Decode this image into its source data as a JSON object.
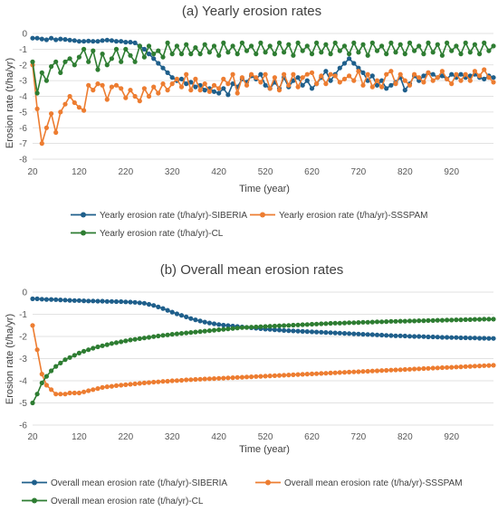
{
  "chart_data": [
    {
      "type": "line",
      "title": "(a) Yearly erosion rates",
      "xlabel": "Time (year)",
      "ylabel": "Erosion rate (t/ha/yr)",
      "xlim": [
        20,
        1010
      ],
      "ylim": [
        -8,
        0
      ],
      "xticks": [
        20,
        120,
        220,
        320,
        420,
        520,
        620,
        720,
        820,
        920
      ],
      "yticks": [
        0,
        -1,
        -2,
        -3,
        -4,
        -5,
        -6,
        -7,
        -8
      ],
      "grid": "horizontal",
      "legend": "bottom",
      "x_step": 10,
      "series": [
        {
          "name": "Yearly erosion rate (t/ha/yr)-SIBERIA",
          "color": "#1f5f8b",
          "values": [
            -0.3,
            -0.3,
            -0.35,
            -0.4,
            -0.3,
            -0.4,
            -0.35,
            -0.38,
            -0.42,
            -0.45,
            -0.5,
            -0.5,
            -0.48,
            -0.5,
            -0.5,
            -0.45,
            -0.42,
            -0.45,
            -0.5,
            -0.5,
            -0.55,
            -0.55,
            -0.6,
            -0.8,
            -1.0,
            -1.3,
            -1.6,
            -1.9,
            -2.2,
            -2.5,
            -2.8,
            -3.0,
            -2.9,
            -3.2,
            -3.1,
            -3.4,
            -3.3,
            -3.6,
            -3.5,
            -3.7,
            -3.8,
            -3.5,
            -3.9,
            -3.2,
            -3.4,
            -2.9,
            -3.1,
            -2.7,
            -2.9,
            -2.6,
            -3.3,
            -3.5,
            -3.1,
            -3.5,
            -2.8,
            -3.4,
            -3.0,
            -2.8,
            -3.3,
            -3.0,
            -3.5,
            -3.2,
            -2.8,
            -2.4,
            -3.0,
            -2.6,
            -2.2,
            -1.9,
            -1.6,
            -1.9,
            -2.2,
            -2.5,
            -3.0,
            -2.7,
            -3.3,
            -3.0,
            -3.5,
            -3.3,
            -3.1,
            -2.8,
            -3.6,
            -3.2,
            -2.7,
            -3.0,
            -2.7,
            -2.5,
            -2.6,
            -2.8,
            -2.7,
            -2.9,
            -2.6,
            -2.8,
            -2.6,
            -2.8,
            -2.7,
            -2.6,
            -2.8,
            -2.9,
            -2.7,
            -2.8
          ]
        },
        {
          "name": "Yearly erosion rate (t/ha/yr)-SSSPAM",
          "color": "#ed7d31",
          "values": [
            -2.0,
            -4.8,
            -7.0,
            -6.0,
            -5.1,
            -6.3,
            -5.0,
            -4.5,
            -4.0,
            -4.4,
            -4.7,
            -4.9,
            -3.3,
            -3.6,
            -3.2,
            -3.3,
            -4.2,
            -3.4,
            -3.3,
            -3.5,
            -4.1,
            -3.6,
            -4.0,
            -4.3,
            -3.5,
            -4.0,
            -3.4,
            -3.8,
            -3.2,
            -3.6,
            -3.2,
            -2.9,
            -3.4,
            -2.6,
            -3.6,
            -2.9,
            -3.6,
            -3.2,
            -3.7,
            -3.3,
            -3.5,
            -2.9,
            -3.2,
            -2.6,
            -3.8,
            -2.8,
            -3.3,
            -2.6,
            -2.8,
            -3.1,
            -2.6,
            -3.5,
            -2.8,
            -3.6,
            -2.6,
            -3.3,
            -2.6,
            -3.4,
            -2.8,
            -2.6,
            -2.5,
            -3.2,
            -2.7,
            -3.2,
            -2.6,
            -2.7,
            -3.1,
            -2.9,
            -2.7,
            -3.0,
            -2.4,
            -3.3,
            -2.6,
            -3.4,
            -3.0,
            -3.4,
            -2.6,
            -2.4,
            -3.2,
            -2.6,
            -3.0,
            -3.3,
            -2.6,
            -2.8,
            -3.1,
            -2.5,
            -3.0,
            -2.8,
            -2.4,
            -2.9,
            -3.2,
            -2.6,
            -3.0,
            -2.6,
            -3.0,
            -2.4,
            -2.7,
            -2.3,
            -2.8,
            -3.1
          ]
        },
        {
          "name": "Yearly erosion rate (t/ha/yr)-CL",
          "color": "#2e7d32",
          "values": [
            -1.8,
            -3.8,
            -2.5,
            -3.0,
            -2.1,
            -1.8,
            -2.5,
            -1.8,
            -1.6,
            -2.0,
            -1.5,
            -1.0,
            -1.8,
            -1.1,
            -2.3,
            -1.3,
            -2.0,
            -1.6,
            -1.0,
            -1.8,
            -1.0,
            -1.4,
            -1.8,
            -0.8,
            -1.5,
            -0.8,
            -1.3,
            -1.1,
            -1.5,
            -0.6,
            -1.3,
            -0.8,
            -1.3,
            -0.7,
            -1.3,
            -0.9,
            -1.3,
            -0.7,
            -1.2,
            -0.8,
            -1.4,
            -0.6,
            -1.2,
            -0.8,
            -1.3,
            -0.6,
            -1.1,
            -0.8,
            -1.3,
            -0.6,
            -1.2,
            -0.8,
            -1.3,
            -0.6,
            -1.2,
            -0.7,
            -1.4,
            -0.6,
            -1.1,
            -0.8,
            -1.3,
            -0.6,
            -1.2,
            -0.7,
            -1.3,
            -0.6,
            -1.1,
            -0.8,
            -1.3,
            -0.6,
            -1.2,
            -0.7,
            -1.4,
            -0.6,
            -1.1,
            -0.8,
            -1.3,
            -0.6,
            -1.2,
            -0.7,
            -1.3,
            -0.6,
            -1.1,
            -0.8,
            -1.3,
            -0.6,
            -1.2,
            -0.7,
            -1.4,
            -0.6,
            -1.1,
            -0.8,
            -1.3,
            -0.6,
            -1.2,
            -0.7,
            -1.3,
            -0.6,
            -1.1,
            -0.8
          ]
        }
      ]
    },
    {
      "type": "line",
      "title": "(b) Overall mean erosion rates",
      "xlabel": "Time (year)",
      "ylabel": "Erosion rate (t/ha/yr)",
      "xlim": [
        20,
        1010
      ],
      "ylim": [
        -6,
        0
      ],
      "xticks": [
        20,
        120,
        220,
        320,
        420,
        520,
        620,
        720,
        820,
        920
      ],
      "yticks": [
        0,
        -1,
        -2,
        -3,
        -4,
        -5,
        -6
      ],
      "grid": "horizontal",
      "legend": "bottom",
      "x_step": 10,
      "series": [
        {
          "name": "Overall mean erosion rate (t/ha/yr)-SIBERIA",
          "color": "#1f5f8b",
          "values": [
            -0.3,
            -0.3,
            -0.32,
            -0.33,
            -0.33,
            -0.34,
            -0.35,
            -0.36,
            -0.37,
            -0.38,
            -0.38,
            -0.39,
            -0.4,
            -0.4,
            -0.41,
            -0.41,
            -0.42,
            -0.42,
            -0.43,
            -0.43,
            -0.44,
            -0.45,
            -0.46,
            -0.48,
            -0.5,
            -0.55,
            -0.6,
            -0.67,
            -0.74,
            -0.82,
            -0.9,
            -0.98,
            -1.05,
            -1.12,
            -1.19,
            -1.25,
            -1.3,
            -1.35,
            -1.39,
            -1.43,
            -1.46,
            -1.49,
            -1.51,
            -1.53,
            -1.55,
            -1.57,
            -1.59,
            -1.61,
            -1.63,
            -1.65,
            -1.67,
            -1.68,
            -1.7,
            -1.71,
            -1.73,
            -1.74,
            -1.75,
            -1.76,
            -1.77,
            -1.78,
            -1.79,
            -1.8,
            -1.81,
            -1.82,
            -1.83,
            -1.84,
            -1.85,
            -1.86,
            -1.87,
            -1.88,
            -1.89,
            -1.9,
            -1.91,
            -1.92,
            -1.93,
            -1.94,
            -1.95,
            -1.96,
            -1.97,
            -1.97,
            -1.98,
            -1.99,
            -2.0,
            -2.0,
            -2.01,
            -2.02,
            -2.02,
            -2.03,
            -2.04,
            -2.04,
            -2.05,
            -2.05,
            -2.06,
            -2.06,
            -2.07,
            -2.07,
            -2.08,
            -2.08,
            -2.09,
            -2.09
          ]
        },
        {
          "name": "Overall mean erosion rate (t/ha/yr)-SSSPAM",
          "color": "#ed7d31",
          "values": [
            -1.5,
            -2.6,
            -3.7,
            -4.2,
            -4.4,
            -4.6,
            -4.6,
            -4.6,
            -4.55,
            -4.55,
            -4.55,
            -4.5,
            -4.45,
            -4.4,
            -4.35,
            -4.3,
            -4.27,
            -4.25,
            -4.22,
            -4.2,
            -4.18,
            -4.16,
            -4.14,
            -4.12,
            -4.1,
            -4.08,
            -4.06,
            -4.05,
            -4.03,
            -4.02,
            -4.0,
            -3.99,
            -3.98,
            -3.96,
            -3.95,
            -3.94,
            -3.93,
            -3.92,
            -3.91,
            -3.9,
            -3.89,
            -3.88,
            -3.87,
            -3.86,
            -3.85,
            -3.84,
            -3.83,
            -3.82,
            -3.81,
            -3.8,
            -3.79,
            -3.78,
            -3.77,
            -3.76,
            -3.75,
            -3.74,
            -3.73,
            -3.72,
            -3.71,
            -3.7,
            -3.69,
            -3.68,
            -3.67,
            -3.66,
            -3.65,
            -3.64,
            -3.63,
            -3.62,
            -3.61,
            -3.6,
            -3.59,
            -3.58,
            -3.57,
            -3.56,
            -3.55,
            -3.54,
            -3.53,
            -3.52,
            -3.51,
            -3.5,
            -3.49,
            -3.48,
            -3.47,
            -3.46,
            -3.45,
            -3.44,
            -3.43,
            -3.42,
            -3.41,
            -3.4,
            -3.39,
            -3.38,
            -3.37,
            -3.36,
            -3.35,
            -3.34,
            -3.33,
            -3.32,
            -3.31,
            -3.3
          ]
        },
        {
          "name": "Overall mean erosion rate (t/ha/yr)-CL",
          "color": "#2e7d32",
          "values": [
            -5.0,
            -4.6,
            -4.1,
            -3.8,
            -3.55,
            -3.35,
            -3.2,
            -3.05,
            -2.95,
            -2.85,
            -2.75,
            -2.67,
            -2.6,
            -2.53,
            -2.47,
            -2.42,
            -2.37,
            -2.32,
            -2.28,
            -2.24,
            -2.2,
            -2.16,
            -2.13,
            -2.1,
            -2.07,
            -2.04,
            -2.01,
            -1.98,
            -1.95,
            -1.93,
            -1.9,
            -1.88,
            -1.86,
            -1.84,
            -1.82,
            -1.8,
            -1.78,
            -1.76,
            -1.74,
            -1.72,
            -1.7,
            -1.68,
            -1.66,
            -1.64,
            -1.62,
            -1.6,
            -1.59,
            -1.58,
            -1.57,
            -1.56,
            -1.55,
            -1.54,
            -1.53,
            -1.52,
            -1.51,
            -1.5,
            -1.49,
            -1.48,
            -1.47,
            -1.46,
            -1.45,
            -1.44,
            -1.43,
            -1.42,
            -1.41,
            -1.4,
            -1.4,
            -1.39,
            -1.38,
            -1.38,
            -1.37,
            -1.36,
            -1.36,
            -1.35,
            -1.34,
            -1.34,
            -1.33,
            -1.32,
            -1.32,
            -1.31,
            -1.31,
            -1.3,
            -1.3,
            -1.29,
            -1.29,
            -1.28,
            -1.28,
            -1.27,
            -1.27,
            -1.26,
            -1.26,
            -1.25,
            -1.25,
            -1.24,
            -1.24,
            -1.23,
            -1.23,
            -1.22,
            -1.22,
            -1.22
          ]
        }
      ]
    }
  ]
}
